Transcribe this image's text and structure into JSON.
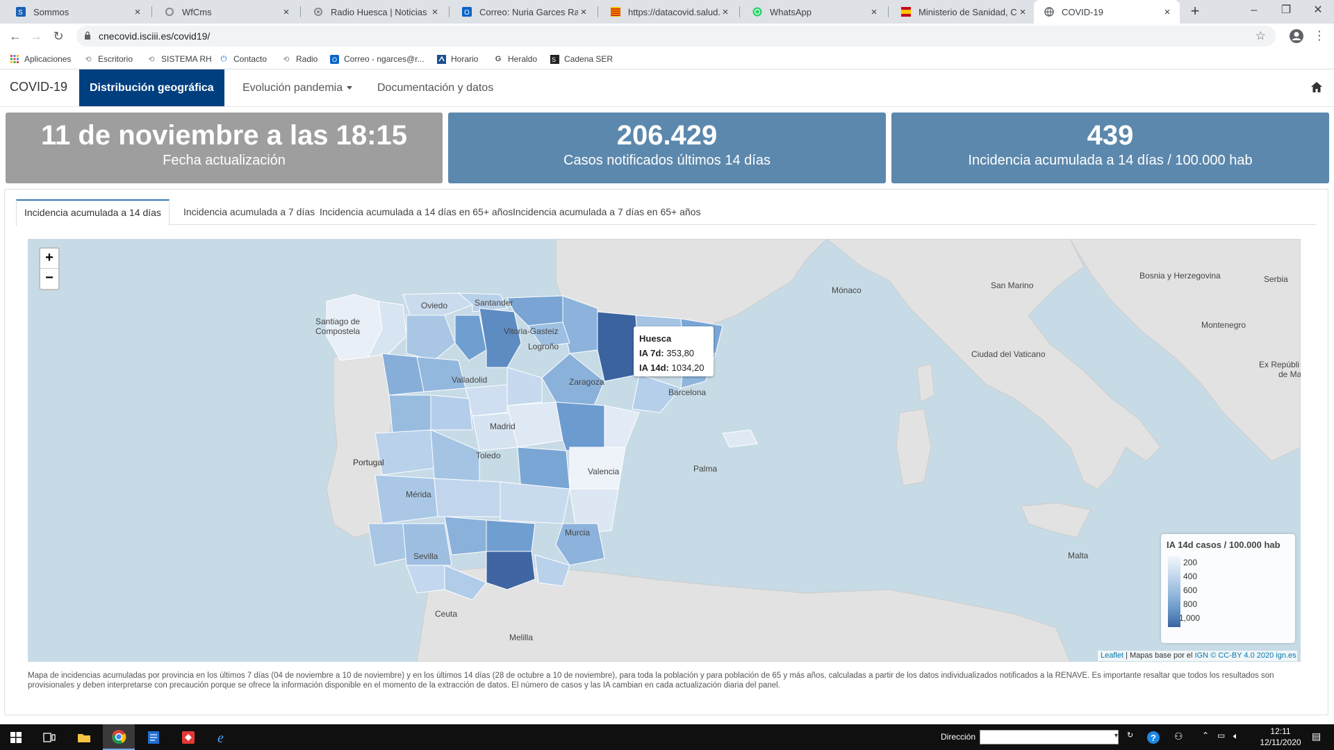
{
  "browser": {
    "tabs": [
      {
        "title": "Sommos",
        "icon": "sommos-icon",
        "active": false
      },
      {
        "title": "WfCms",
        "icon": "wfcms-icon",
        "active": false
      },
      {
        "title": "Radio Huesca | Noticias de Huesca",
        "icon": "radio-icon",
        "active": false
      },
      {
        "title": "Correo: Nuria Garces Ramon",
        "icon": "outlook-icon",
        "active": false
      },
      {
        "title": "https://datacovid.salud.aragon.es",
        "icon": "aragon-flag-icon",
        "active": false
      },
      {
        "title": "WhatsApp",
        "icon": "whatsapp-icon",
        "active": false
      },
      {
        "title": "Ministerio de Sanidad, Consumo",
        "icon": "ministerio-icon",
        "active": false
      },
      {
        "title": "COVID-19",
        "icon": "globe-icon",
        "active": true
      }
    ],
    "new_tab": "+",
    "url": "cnecovid.isciii.es/covid19/",
    "bookmarks": [
      {
        "label": "Aplicaciones",
        "icon": "apps-grid-icon"
      },
      {
        "label": "Escritorio",
        "icon": "link-icon"
      },
      {
        "label": "SISTEMA RH",
        "icon": "link-icon"
      },
      {
        "label": "Contacto",
        "icon": "power-icon"
      },
      {
        "label": "Radio",
        "icon": "link-icon"
      },
      {
        "label": "Correo - ngarces@r...",
        "icon": "outlook-icon"
      },
      {
        "label": "Horario",
        "icon": "horario-icon"
      },
      {
        "label": "Heraldo",
        "icon": "google-icon"
      },
      {
        "label": "Cadena SER",
        "icon": "ser-icon"
      }
    ]
  },
  "app": {
    "brand": "COVID-19",
    "nav": [
      {
        "label": "Distribución geográfica",
        "active": true
      },
      {
        "label": "Evolución pandemia",
        "dropdown": true
      },
      {
        "label": "Documentación y datos"
      }
    ],
    "home_icon": "home-icon"
  },
  "kpis": [
    {
      "value": "11 de noviembre a las 18:15",
      "label": "Fecha actualización",
      "color": "#9e9e9e"
    },
    {
      "value": "206.429",
      "label": "Casos notificados últimos 14 días",
      "color": "#5c88ad"
    },
    {
      "value": "439",
      "label": "Incidencia acumulada a 14 días / 100.000 hab",
      "color": "#5c88ad"
    }
  ],
  "map_tabs": [
    {
      "label": "Incidencia acumulada a 14 días",
      "active": true
    },
    {
      "label": "Incidencia acumulada a 7 días"
    },
    {
      "label": "Incidencia acumulada a 14 días en 65+ años"
    },
    {
      "label": "Incidencia acumulada a 7 días en 65+ años"
    }
  ],
  "map": {
    "zoom_in": "+",
    "zoom_out": "−",
    "labels": {
      "oviedo": "Oviedo",
      "santander": "Santander",
      "santiago": "Santiago de Compostela",
      "vitoria": "Vitoria-Gasteiz",
      "logrono": "Logroño",
      "valladolid": "Valladolid",
      "zaragoza": "Zaragoza",
      "barcelona": "Barcelona",
      "madrid": "Madrid",
      "toledo": "Toledo",
      "valencia": "Valencia",
      "palma": "Palma",
      "portugal": "Portugal",
      "merida": "Mérida",
      "murcia": "Murcia",
      "sevilla": "Sevilla",
      "ceuta": "Ceuta",
      "melilla": "Melilla",
      "monaco": "Mónaco",
      "san_marino": "San Marino",
      "bosnia": "Bosnia y Herzegovina",
      "serbia": "Serbia",
      "montenegro": "Montenegro",
      "vaticano": "Ciudad del Vaticano",
      "ex_republica_1": "Ex Repúbli",
      "ex_republica_2": "de Ma",
      "malta": "Malta"
    },
    "tooltip": {
      "province": "Huesca",
      "ia7_label": "IA 7d:",
      "ia7_value": "353,80",
      "ia14_label": "IA 14d:",
      "ia14_value": "1034,20"
    },
    "legend": {
      "title": "IA 14d casos / 100.000 hab",
      "ticks": [
        "200",
        "400",
        "600",
        "800",
        "1,000"
      ]
    },
    "attribution": {
      "leaflet": "Leaflet",
      "sep": " | Mapas base por el ",
      "ign": "IGN",
      "license": "© CC-BY 4.0 2020 ign.es"
    }
  },
  "note": "Mapa de incidencias acumuladas por provincia en los últimos 7 días (04 de noviembre a 10 de noviembre) y en los últimos 14 días (28 de octubre a 10 de noviembre), para toda la población y para población de 65 y más años, calculadas a partir de los datos individualizados notificados a la RENAVE. Es importante resaltar que todos los resultados son provisionales y deben interpretarse con precaución porque se ofrece la información disponible en el momento de la extracción de datos. El número de casos y las IA cambian en cada actualización diaria del panel.",
  "taskbar": {
    "address_label": "Dirección",
    "time": "12:11",
    "date": "12/11/2020"
  }
}
